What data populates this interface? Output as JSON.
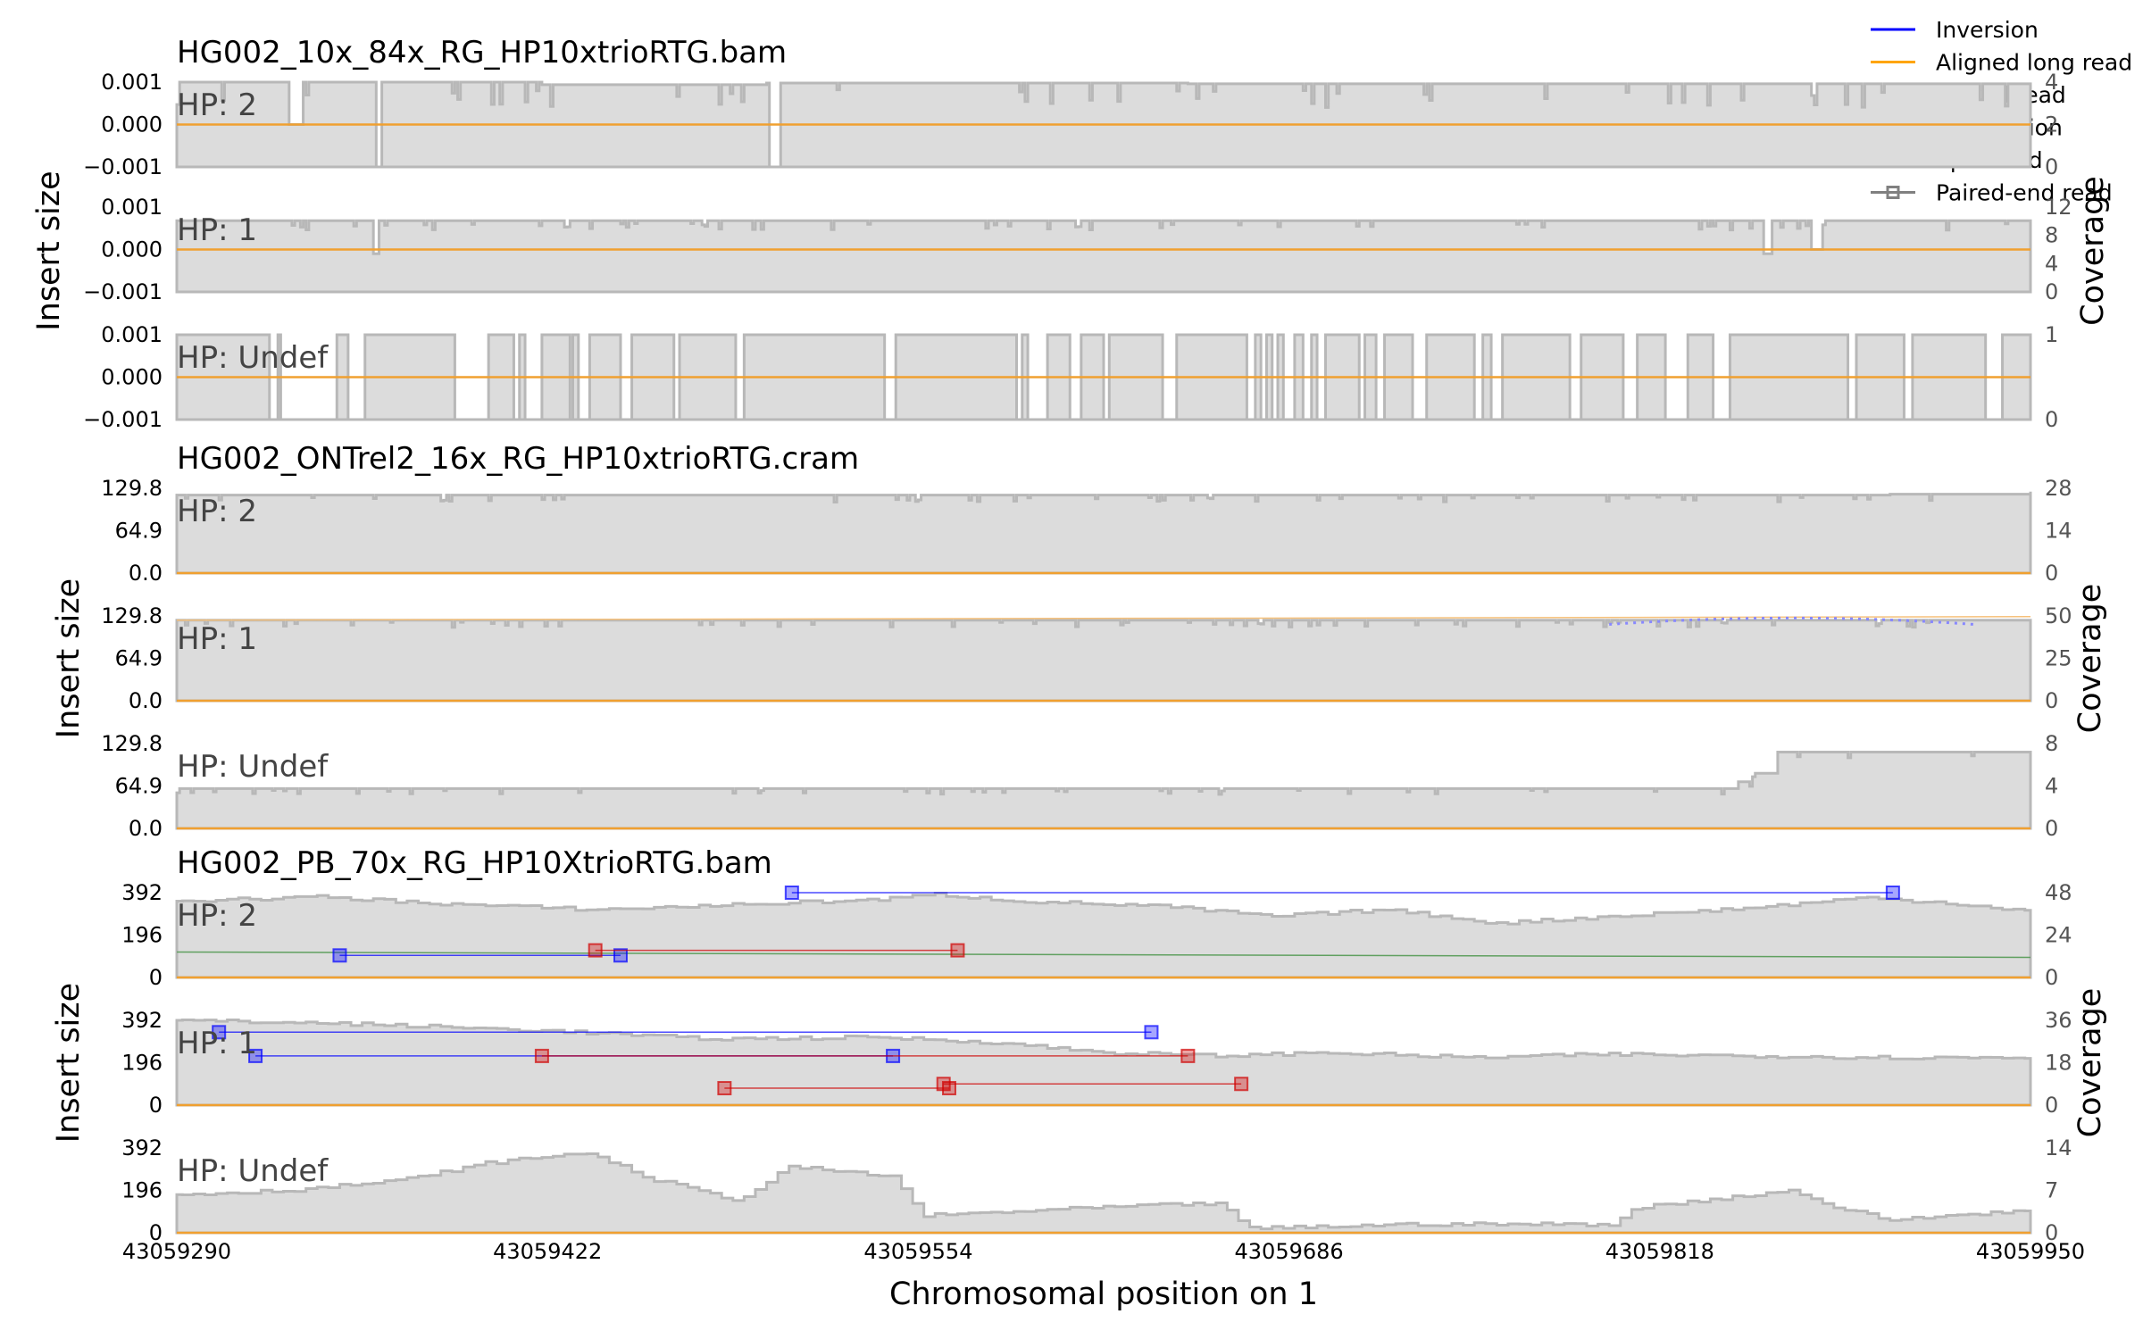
{
  "chart_data": {
    "type": "line",
    "xlabel": "Chromosomal position on 1",
    "x_ticks": [
      "43059290",
      "43059422",
      "43059554",
      "43059686",
      "43059818",
      "43059950"
    ],
    "xlim": [
      43059290,
      43059950
    ],
    "legend": {
      "placement": "top-right",
      "entries": [
        {
          "label": "Inversion",
          "color": "#0000ff",
          "style": "line"
        },
        {
          "label": "Aligned long read",
          "color": "#ffa500",
          "style": "line"
        },
        {
          "label": "Linked read",
          "color": "#008000",
          "style": "line"
        },
        {
          "label": "Duplication",
          "color": "#ff0000",
          "style": "line"
        },
        {
          "label": "Split read",
          "color": "#808080",
          "style": "dotted-circle"
        },
        {
          "label": "Paired-end read",
          "color": "#808080",
          "style": "solid-square"
        }
      ]
    },
    "groups": [
      {
        "title": "HG002_10x_84x_RG_HP10xtrioRTG.bam",
        "ylabel": "Insert size",
        "y2label": "Coverage",
        "panels": [
          {
            "label": "HP: 2",
            "y_ticks": [
              "0.001",
              "0.000",
              "−0.001"
            ],
            "y2_ticks": [
              "4",
              "2",
              "0"
            ],
            "coverage_max": 4,
            "coverage_base": 0.97,
            "coverage_var": 0.2,
            "dip_prob": 0.06,
            "steps": [
              [
                43059290,
                1.0
              ],
              [
                43059420,
                0.97
              ],
              [
                43059500,
                0.99
              ],
              [
                43059650,
                0.98
              ],
              [
                43059950,
                1.0
              ]
            ],
            "deep_dips": [
              [
                43059330,
                43059335,
                0.5
              ],
              [
                43059361,
                43059363,
                0.0
              ],
              [
                43059501,
                43059505,
                0.0
              ]
            ],
            "long_read_line": 0.0,
            "pairs": []
          },
          {
            "label": "HP: 1",
            "y_ticks": [
              "0.001",
              "0.000",
              "−0.001"
            ],
            "y2_ticks": [
              "12",
              "8",
              "4",
              "0"
            ],
            "coverage_max": 12,
            "coverage_base": 0.84,
            "coverage_var": 0.08,
            "dip_prob": 0.05,
            "steps": [
              [
                43059290,
                0.84
              ],
              [
                43059950,
                0.84
              ]
            ],
            "deep_dips": [
              [
                43059360,
                43059362,
                0.45
              ],
              [
                43059855,
                43059858,
                0.45
              ],
              [
                43059872,
                43059876,
                0.5
              ]
            ],
            "long_read_line": 0.0,
            "pairs": []
          },
          {
            "label": "HP: Undef",
            "y_ticks": [
              "0.001",
              "0.000",
              "−0.001"
            ],
            "y2_ticks": [
              "1",
              "0"
            ],
            "coverage_max": 1,
            "binary": true,
            "gaps": [
              43059323,
              43059326,
              43059327,
              43059347,
              43059351,
              43059357,
              43059389,
              43059401,
              43059410,
              43059412,
              43059414,
              43059420,
              43059430,
              43059431,
              43059433,
              43059437,
              43059448,
              43059452,
              43059467,
              43059469,
              43059489,
              43059492,
              43059542,
              43059546,
              43059589,
              43059591,
              43059593,
              43059600,
              43059608,
              43059612,
              43059620,
              43059622,
              43059641,
              43059646,
              43059671,
              43059674,
              43059676,
              43059678,
              43059680,
              43059682,
              43059684,
              43059688,
              43059691,
              43059694,
              43059696,
              43059699,
              43059711,
              43059713,
              43059717,
              43059720,
              43059730,
              43059735,
              43059752,
              43059755,
              43059758,
              43059762,
              43059786,
              43059790,
              43059805,
              43059810,
              43059820,
              43059828,
              43059837,
              43059843,
              43059885,
              43059888,
              43059905,
              43059908,
              43059934,
              43059940
            ],
            "long_read_line": 0.0,
            "pairs": []
          }
        ]
      },
      {
        "title": "HG002_ONTrel2_16x_RG_HP10xtrioRTG.cram",
        "ylabel": "Insert size",
        "y2label": "Coverage",
        "panels": [
          {
            "label": "HP: 2",
            "y_ticks": [
              "129.8",
              "64.9",
              "0.0"
            ],
            "y2_ticks": [
              "28",
              "14",
              "0"
            ],
            "coverage_max": 28,
            "coverage_base": 0.91,
            "coverage_var": 0.06,
            "dip_prob": 0.08,
            "steps": [
              [
                43059290,
                0.92
              ],
              [
                43059900,
                0.93
              ],
              [
                43059950,
                0.96
              ]
            ],
            "deep_dips": [],
            "long_read_line": 0.0,
            "pairs": []
          },
          {
            "label": "HP: 1",
            "y_ticks": [
              "129.8",
              "64.9",
              "0.0"
            ],
            "y2_ticks": [
              "50",
              "25",
              "0"
            ],
            "coverage_max": 50,
            "coverage_base": 0.93,
            "coverage_var": 0.06,
            "dip_prob": 0.09,
            "steps": [
              [
                43059290,
                0.95
              ],
              [
                43059950,
                0.9
              ]
            ],
            "deep_dips": [],
            "long_read_line": 0.95,
            "split_arc": {
              "start": 43059800,
              "end": 43059930,
              "level": 1.0,
              "color": "#8888ff"
            },
            "pairs": []
          },
          {
            "label": "HP: Undef",
            "y_ticks": [
              "129.8",
              "64.9",
              "0.0"
            ],
            "y2_ticks": [
              "8",
              "4",
              "0"
            ],
            "coverage_max": 8,
            "coverage_base": 0.47,
            "coverage_var": 0.05,
            "dip_prob": 0.05,
            "steps": [
              [
                43059290,
                0.47
              ],
              [
                43059846,
                0.55
              ],
              [
                43059851,
                0.65
              ],
              [
                43059860,
                0.9
              ],
              [
                43059950,
                0.9
              ]
            ],
            "deep_dips": [],
            "long_read_line": 0.0,
            "pairs": []
          }
        ]
      },
      {
        "title": "HG002_PB_70x_RG_HP10XtrioRTG.bam",
        "ylabel": "Insert size",
        "y2label": "Coverage",
        "panels": [
          {
            "label": "HP: 2",
            "y_ticks": [
              "392",
              "196",
              "0"
            ],
            "y2_ticks": [
              "48",
              "24",
              "0"
            ],
            "coverage_max": 48,
            "smooth": [
              [
                43059290,
                0.9
              ],
              [
                43059340,
                0.95
              ],
              [
                43059390,
                0.86
              ],
              [
                43059440,
                0.8
              ],
              [
                43059490,
                0.86
              ],
              [
                43059540,
                0.92
              ],
              [
                43059560,
                0.98
              ],
              [
                43059590,
                0.9
              ],
              [
                43059640,
                0.84
              ],
              [
                43059680,
                0.72
              ],
              [
                43059720,
                0.8
              ],
              [
                43059760,
                0.64
              ],
              [
                43059800,
                0.72
              ],
              [
                43059850,
                0.82
              ],
              [
                43059890,
                0.94
              ],
              [
                43059920,
                0.88
              ],
              [
                43059950,
                0.78
              ]
            ],
            "linked_line": 0.3,
            "pairs": [
              {
                "x1": 43059509,
                "x2": 43059901,
                "y": 1.0,
                "color": "#0000ff"
              },
              {
                "x1": 43059348,
                "x2": 43059448,
                "y": 0.26,
                "color": "#0000ff"
              },
              {
                "x1": 43059439,
                "x2": 43059568,
                "y": 0.32,
                "color": "#d00000"
              }
            ]
          },
          {
            "label": "HP: 1",
            "y_ticks": [
              "392",
              "196",
              "0"
            ],
            "y2_ticks": [
              "36",
              "18",
              "0"
            ],
            "coverage_max": 36,
            "smooth": [
              [
                43059290,
                1.0
              ],
              [
                43059350,
                0.96
              ],
              [
                43059420,
                0.88
              ],
              [
                43059480,
                0.78
              ],
              [
                43059540,
                0.8
              ],
              [
                43059580,
                0.74
              ],
              [
                43059620,
                0.62
              ],
              [
                43059660,
                0.58
              ],
              [
                43059700,
                0.62
              ],
              [
                43059750,
                0.56
              ],
              [
                43059800,
                0.6
              ],
              [
                43059850,
                0.58
              ],
              [
                43059900,
                0.56
              ],
              [
                43059950,
                0.56
              ]
            ],
            "pairs": [
              {
                "x1": 43059305,
                "x2": 43059637,
                "y": 0.86,
                "color": "#0000ff"
              },
              {
                "x1": 43059318,
                "x2": 43059545,
                "y": 0.58,
                "color": "#0000ff"
              },
              {
                "x1": 43059420,
                "x2": 43059650,
                "y": 0.58,
                "color": "#d00000"
              },
              {
                "x1": 43059485,
                "x2": 43059565,
                "y": 0.2,
                "color": "#d00000"
              },
              {
                "x1": 43059563,
                "x2": 43059669,
                "y": 0.25,
                "color": "#d00000"
              }
            ]
          },
          {
            "label": "HP: Undef",
            "y_ticks": [
              "392",
              "196",
              "0"
            ],
            "y2_ticks": [
              "14",
              "7",
              "0"
            ],
            "coverage_max": 14,
            "smooth": [
              [
                43059290,
                0.45
              ],
              [
                43059330,
                0.5
              ],
              [
                43059370,
                0.62
              ],
              [
                43059400,
                0.82
              ],
              [
                43059435,
                0.95
              ],
              [
                43059460,
                0.62
              ],
              [
                43059490,
                0.38
              ],
              [
                43059508,
                0.78
              ],
              [
                43059545,
                0.66
              ],
              [
                43059555,
                0.2
              ],
              [
                43059620,
                0.3
              ],
              [
                43059660,
                0.35
              ],
              [
                43059672,
                0.05
              ],
              [
                43059730,
                0.1
              ],
              [
                43059800,
                0.1
              ],
              [
                43059810,
                0.3
              ],
              [
                43059865,
                0.5
              ],
              [
                43059880,
                0.3
              ],
              [
                43059900,
                0.15
              ],
              [
                43059940,
                0.25
              ],
              [
                43059950,
                0.25
              ]
            ],
            "pairs": []
          }
        ]
      }
    ]
  }
}
